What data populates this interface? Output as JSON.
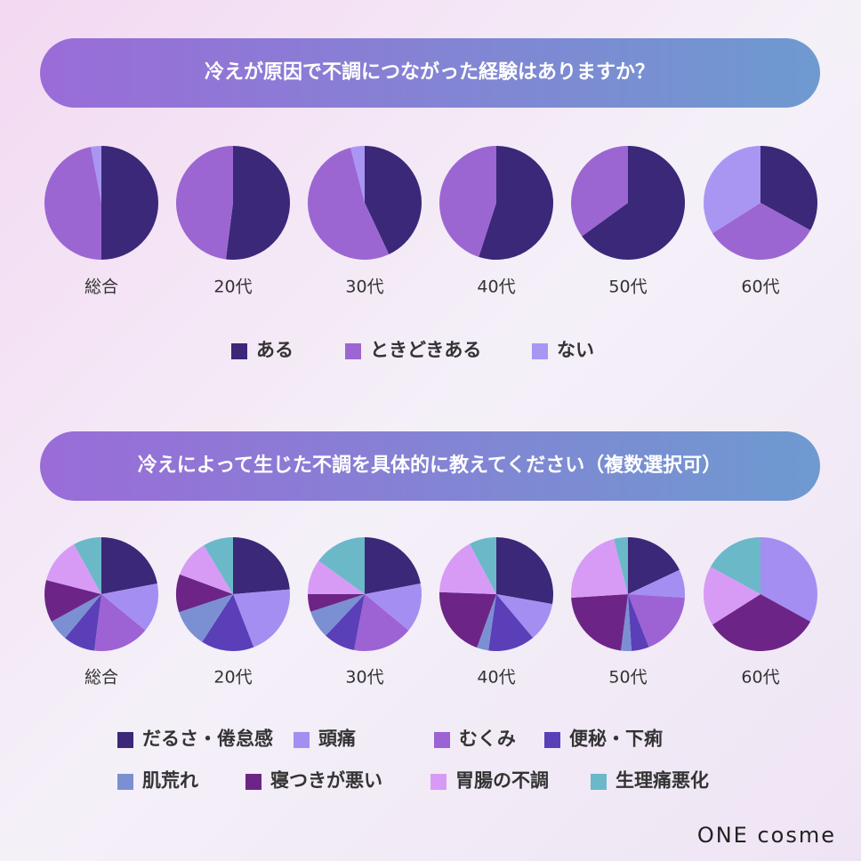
{
  "chart_data": [
    {
      "type": "pie",
      "title": "冷えが原因で不調につながった経験はありますか？",
      "categories": [
        "総合",
        "20代",
        "30代",
        "40代",
        "50代",
        "60代"
      ],
      "series": [
        {
          "name": "ある",
          "color": "#3b2878",
          "values": [
            50,
            52,
            43,
            55,
            65,
            33
          ]
        },
        {
          "name": "ときどきある",
          "color": "#9c66d2",
          "values": [
            47,
            48,
            53,
            45,
            35,
            33
          ]
        },
        {
          "name": "ない",
          "color": "#a996f2",
          "values": [
            3,
            0,
            4,
            0,
            0,
            34
          ]
        }
      ]
    },
    {
      "type": "pie",
      "title": "冷えによって生じた不調を具体的に教えてください（複数選択可）",
      "categories": [
        "総合",
        "20代",
        "30代",
        "40代",
        "50代",
        "60代"
      ],
      "series": [
        {
          "name": "だるさ・倦怠感",
          "color": "#3b2878",
          "values": [
            22,
            22,
            22,
            25,
            18,
            0
          ]
        },
        {
          "name": "頭痛",
          "color": "#a58ef2",
          "values": [
            14,
            19,
            14,
            10,
            8,
            33
          ]
        },
        {
          "name": "むくみ",
          "color": "#9d62d4",
          "values": [
            16,
            0,
            17,
            0,
            18,
            0
          ]
        },
        {
          "name": "便秘・下痢",
          "color": "#5a3fb8",
          "values": [
            9,
            14,
            9,
            12,
            5,
            0
          ]
        },
        {
          "name": "肌荒れ",
          "color": "#7b90d2",
          "values": [
            6,
            10,
            8,
            3,
            3,
            0
          ]
        },
        {
          "name": "寝つきが悪い",
          "color": "#6c2586",
          "values": [
            12,
            10,
            5,
            18,
            22,
            33
          ]
        },
        {
          "name": "胃腸の不調",
          "color": "#d79bf6",
          "values": [
            13,
            10,
            10,
            15,
            22,
            17
          ]
        },
        {
          "name": "生理痛悪化",
          "color": "#6bb8c8",
          "values": [
            8,
            8,
            15,
            7,
            4,
            17
          ]
        }
      ]
    }
  ],
  "brand": "ONE cosme"
}
